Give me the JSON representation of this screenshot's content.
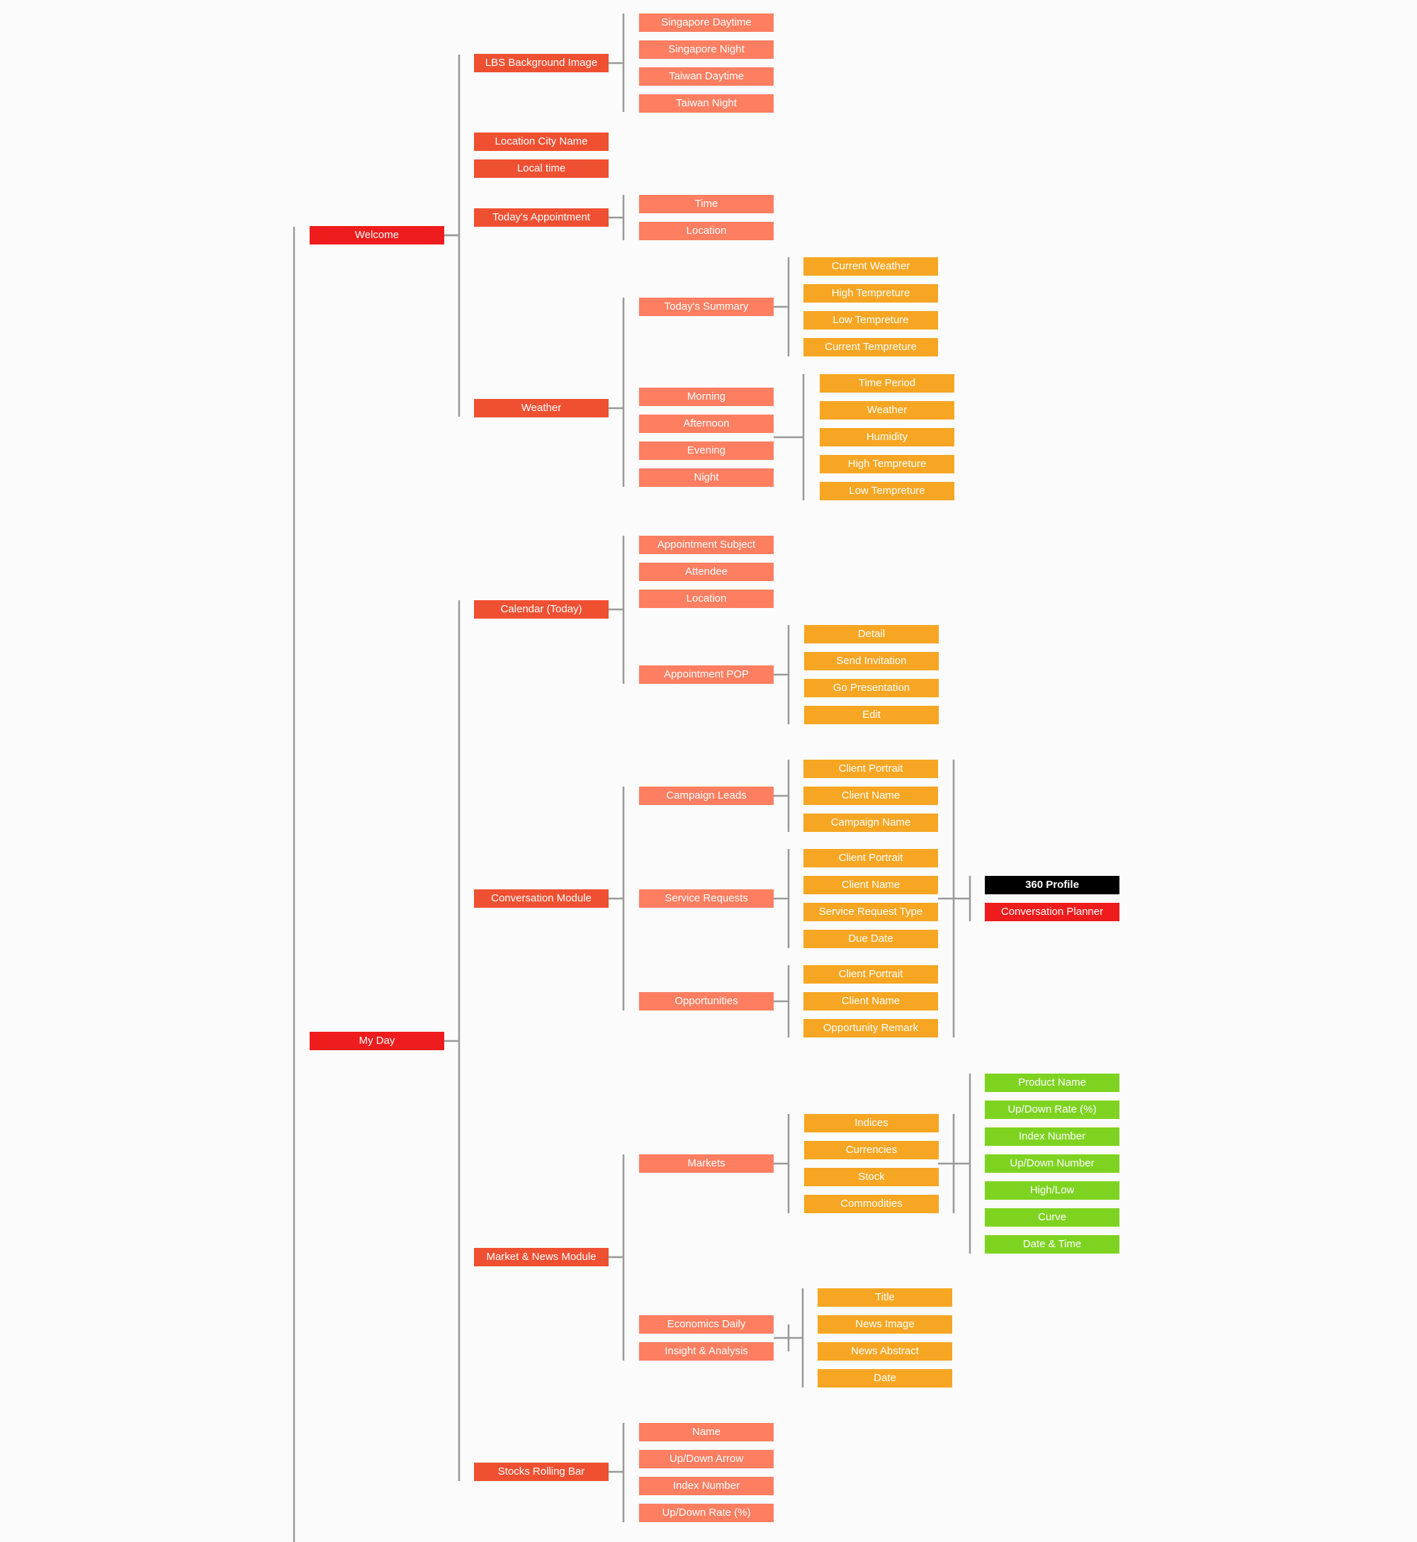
{
  "colors": {
    "level1": "#ee1c1c",
    "level2": "#ef5032",
    "level3": "#fd7e61",
    "level4": "#f6a623",
    "level5_green": "#7ed321",
    "level5_black": "#000000",
    "level5_red": "#ee1c1c",
    "connector": "#999999",
    "background": "#fbfbfb"
  },
  "tree": [
    {
      "label": "Welcome",
      "children": [
        {
          "label": "LBS Background Image",
          "children": [
            {
              "label": "Singapore Daytime"
            },
            {
              "label": "Singapore Night"
            },
            {
              "label": "Taiwan Daytime"
            },
            {
              "label": "Taiwan Night"
            }
          ]
        },
        {
          "label": "Location City Name"
        },
        {
          "label": "Local time"
        },
        {
          "label": "Today's Appointment",
          "children": [
            {
              "label": "Time"
            },
            {
              "label": "Location"
            }
          ]
        },
        {
          "label": "Weather",
          "children": [
            {
              "label": "Today's Summary",
              "children": [
                {
                  "label": "Current Weather"
                },
                {
                  "label": "High Tempreture"
                },
                {
                  "label": "Low Tempreture"
                },
                {
                  "label": "Current Tempreture"
                }
              ]
            },
            {
              "label": "Morning"
            },
            {
              "label": "Afternoon"
            },
            {
              "label": "Evening"
            },
            {
              "label": "Night"
            }
          ],
          "shared_children_of": [
            "Morning",
            "Afternoon",
            "Evening",
            "Night"
          ],
          "shared_children": [
            {
              "label": "Time Period"
            },
            {
              "label": "Weather"
            },
            {
              "label": "Humidity"
            },
            {
              "label": "High Tempreture"
            },
            {
              "label": "Low Tempreture"
            }
          ]
        }
      ]
    },
    {
      "label": "My Day",
      "children": [
        {
          "label": "Calendar (Today)",
          "children": [
            {
              "label": "Appointment Subject"
            },
            {
              "label": "Attendee"
            },
            {
              "label": "Location"
            },
            {
              "label": "Appointment POP",
              "children": [
                {
                  "label": "Detail"
                },
                {
                  "label": "Send Invitation"
                },
                {
                  "label": "Go Presentation"
                },
                {
                  "label": "Edit"
                }
              ]
            }
          ]
        },
        {
          "label": "Conversation Module",
          "children": [
            {
              "label": "Campaign Leads",
              "children": [
                {
                  "label": "Client Portrait"
                },
                {
                  "label": "Client Name"
                },
                {
                  "label": "Campaign Name"
                }
              ]
            },
            {
              "label": "Service Requests",
              "children": [
                {
                  "label": "Client Portrait"
                },
                {
                  "label": "Client Name"
                },
                {
                  "label": "Service Request Type"
                },
                {
                  "label": "Due Date"
                }
              ]
            },
            {
              "label": "Opportunities",
              "children": [
                {
                  "label": "Client Portrait"
                },
                {
                  "label": "Client Name"
                },
                {
                  "label": "Opportunity Remark"
                }
              ]
            }
          ],
          "shared_actions": [
            {
              "label": "360 Profile"
            },
            {
              "label": "Conversation Planner"
            }
          ]
        },
        {
          "label": "Market & News Module",
          "children": [
            {
              "label": "Markets",
              "children": [
                {
                  "label": "Indices"
                },
                {
                  "label": "Currencies"
                },
                {
                  "label": "Stock"
                },
                {
                  "label": "Commodities"
                }
              ],
              "shared_fields": [
                {
                  "label": "Product Name"
                },
                {
                  "label": "Up/Down Rate (%)"
                },
                {
                  "label": "Index Number"
                },
                {
                  "label": "Up/Down Number"
                },
                {
                  "label": "High/Low"
                },
                {
                  "label": "Curve"
                },
                {
                  "label": "Date & Time"
                }
              ]
            },
            {
              "label": "Economics Daily"
            },
            {
              "label": "Insight & Analysis"
            }
          ],
          "news_fields": [
            {
              "label": "Title"
            },
            {
              "label": "News Image"
            },
            {
              "label": "News Abstract"
            },
            {
              "label": "Date"
            }
          ]
        },
        {
          "label": "Stocks Rolling Bar",
          "children": [
            {
              "label": "Name"
            },
            {
              "label": "Up/Down Arrow"
            },
            {
              "label": "Index Number"
            },
            {
              "label": "Up/Down Rate (%)"
            }
          ]
        }
      ]
    }
  ]
}
